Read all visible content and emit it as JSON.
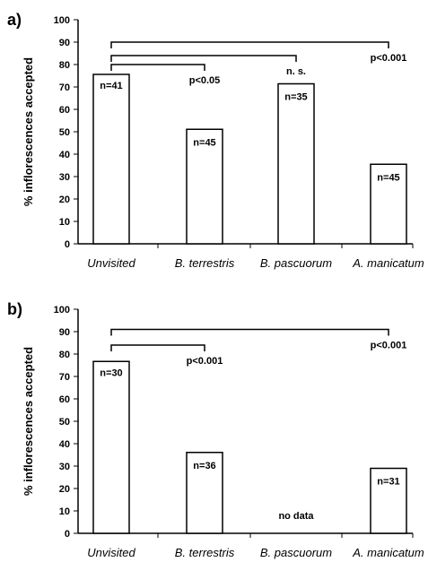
{
  "chart_data": [
    {
      "type": "bar",
      "panel_label": "a)",
      "categories": [
        "Unvisited",
        "B. terrestris",
        "B. pascuorum",
        "A. manicatum"
      ],
      "values": [
        75.6,
        51.1,
        71.4,
        35.5
      ],
      "bar_labels": [
        "n=41",
        "n=45",
        "n=35",
        "n=45"
      ],
      "ylabel": "% inflorescences accepted",
      "ylim": [
        0,
        100
      ],
      "yticks": [
        0,
        10,
        20,
        30,
        40,
        50,
        60,
        70,
        80,
        90,
        100
      ],
      "grid": false,
      "comparisons": [
        {
          "from": 0,
          "to": 3,
          "label": "p<0.001",
          "level": 90
        },
        {
          "from": 0,
          "to": 2,
          "label": "n. s.",
          "level": 84
        },
        {
          "from": 0,
          "to": 1,
          "label": "p<0.05",
          "level": 80
        }
      ]
    },
    {
      "type": "bar",
      "panel_label": "b)",
      "categories": [
        "Unvisited",
        "B. terrestris",
        "B. pascuorum",
        "A. manicatum"
      ],
      "values": [
        76.7,
        36.1,
        null,
        29.0
      ],
      "bar_labels": [
        "n=30",
        "n=36",
        "",
        "n=31"
      ],
      "missing_label": "no data",
      "ylabel": "% inflorescences accepted",
      "ylim": [
        0,
        100
      ],
      "yticks": [
        0,
        10,
        20,
        30,
        40,
        50,
        60,
        70,
        80,
        90,
        100
      ],
      "grid": false,
      "comparisons": [
        {
          "from": 0,
          "to": 3,
          "label": "p<0.001",
          "level": 91
        },
        {
          "from": 0,
          "to": 1,
          "label": "p<0.001",
          "level": 84
        }
      ]
    }
  ]
}
